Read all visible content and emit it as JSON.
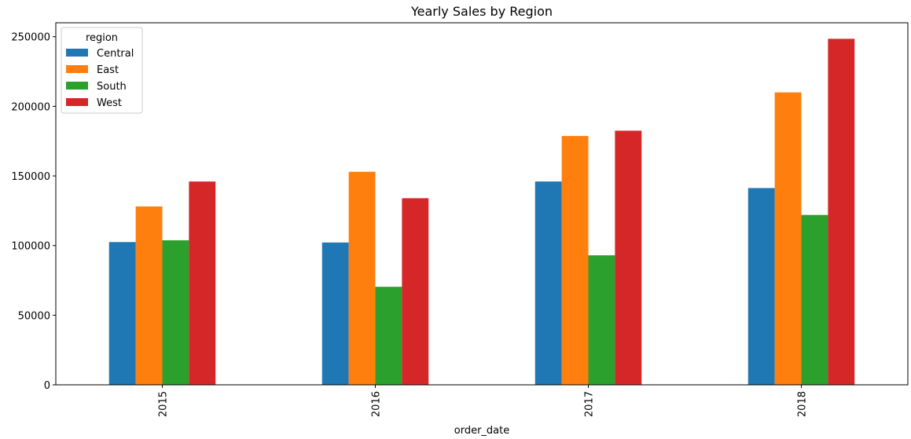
{
  "chart_data": {
    "type": "bar",
    "title": "Yearly Sales by Region",
    "xlabel": "order_date",
    "ylabel": "",
    "categories": [
      "2015",
      "2016",
      "2017",
      "2018"
    ],
    "yticks": [
      "0",
      "50000",
      "100000",
      "150000",
      "200000",
      "250000"
    ],
    "ylim": [
      0,
      260000
    ],
    "grid": false,
    "legend": {
      "title": "region",
      "placement": "top-left"
    },
    "series": [
      {
        "name": "Central",
        "color": "#1f77b4",
        "values": [
          102500,
          102200,
          146000,
          141300
        ]
      },
      {
        "name": "East",
        "color": "#ff7f0e",
        "values": [
          128100,
          153000,
          178700,
          210000
        ]
      },
      {
        "name": "South",
        "color": "#2ca02c",
        "values": [
          103800,
          70400,
          93000,
          122000
        ]
      },
      {
        "name": "West",
        "color": "#d62728",
        "values": [
          146000,
          134000,
          182500,
          248500
        ]
      }
    ]
  }
}
